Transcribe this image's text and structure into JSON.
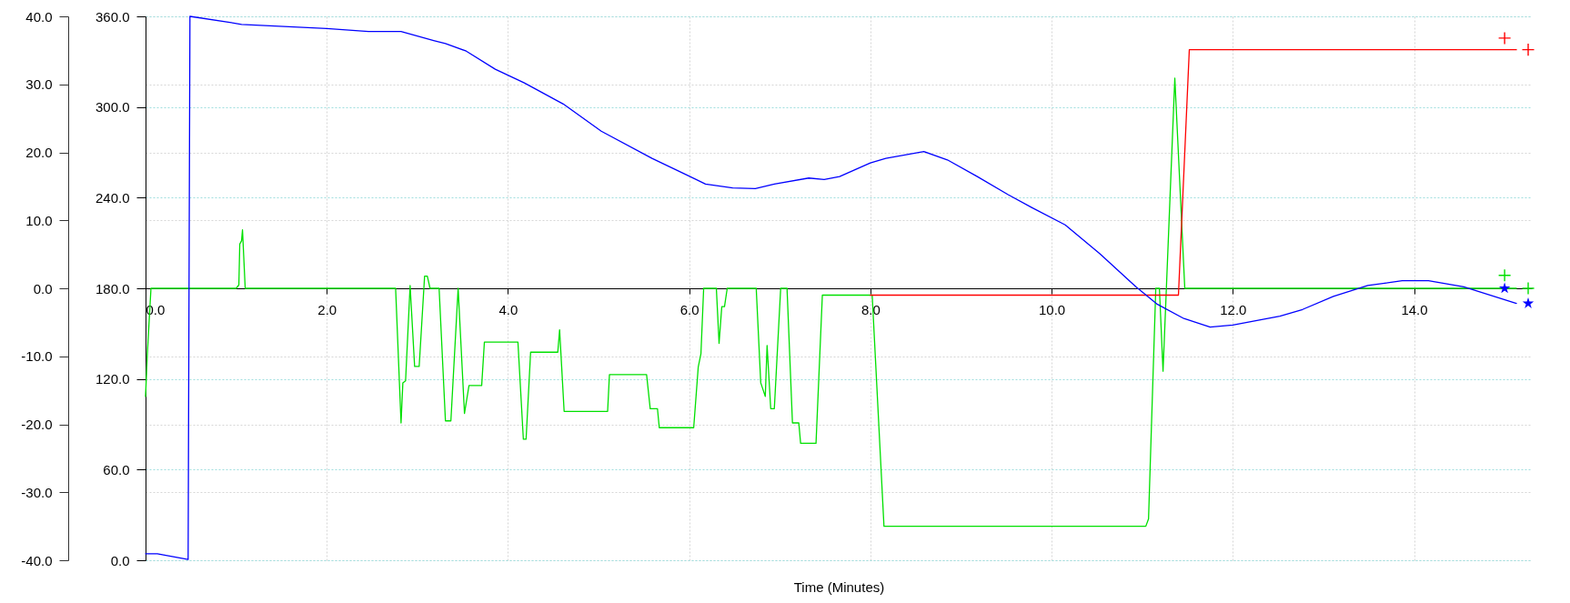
{
  "chart_data": {
    "type": "line",
    "xlabel": "Time (Minutes)",
    "grid": true,
    "xlim": [
      0,
      15.3
    ],
    "xticks": [
      {
        "value": 0,
        "label": "0.0"
      },
      {
        "value": 2,
        "label": "2.0"
      },
      {
        "value": 4,
        "label": "4.0"
      },
      {
        "value": 6,
        "label": "6.0"
      },
      {
        "value": 8,
        "label": "8.0"
      },
      {
        "value": 10,
        "label": "10.0"
      },
      {
        "value": 12,
        "label": "12.0"
      },
      {
        "value": 14,
        "label": "14.0"
      }
    ],
    "ylim": [
      -40,
      40
    ],
    "yticks": [
      {
        "value": -40,
        "label": "-40.0"
      },
      {
        "value": -30,
        "label": "-30.0"
      },
      {
        "value": -20,
        "label": "-20.0"
      },
      {
        "value": -10,
        "label": "-10.0"
      },
      {
        "value": 0,
        "label": "0.0"
      },
      {
        "value": 10,
        "label": "10.0"
      },
      {
        "value": 20,
        "label": "20.0"
      },
      {
        "value": 30,
        "label": "30.0"
      },
      {
        "value": 40,
        "label": "40.0"
      }
    ],
    "y2lim": [
      0,
      360
    ],
    "y2ticks": [
      {
        "value": 0,
        "label": "0.0"
      },
      {
        "value": 60,
        "label": "60.0"
      },
      {
        "value": 120,
        "label": "120.0"
      },
      {
        "value": 180,
        "label": "180.0"
      },
      {
        "value": 240,
        "label": "240.0"
      },
      {
        "value": 300,
        "label": "300.0"
      },
      {
        "value": 360,
        "label": "360.0"
      }
    ],
    "series": [
      {
        "type": "line",
        "color": "#00e000",
        "x": [
          0,
          0.02,
          0.06,
          1.0,
          1.03,
          1.04,
          1.06,
          1.07,
          1.1,
          2.76,
          2.82,
          2.84,
          2.87,
          2.92,
          2.97,
          3.02,
          3.08,
          3.11,
          3.14,
          3.24,
          3.31,
          3.37,
          3.45,
          3.52,
          3.57,
          3.71,
          3.74,
          4.11,
          4.17,
          4.2,
          4.25,
          4.55,
          4.57,
          4.62,
          5.1,
          5.12,
          5.53,
          5.57,
          5.65,
          5.67,
          6.05,
          6.1,
          6.13,
          6.16,
          6.3,
          6.33,
          6.36,
          6.39,
          6.42,
          6.74,
          6.79,
          6.84,
          6.86,
          6.9,
          6.94,
          7.01,
          7.08,
          7.14,
          7.21,
          7.23,
          7.4,
          7.47,
          8.02,
          8.15,
          11.04,
          11.07,
          11.15,
          11.19,
          11.23,
          11.36,
          11.47,
          15.13
        ],
        "values": [
          -15.9,
          -9.6,
          0,
          0,
          0.5,
          6.5,
          7,
          8.6,
          0,
          0,
          -19.8,
          -13.9,
          -13.6,
          0.4,
          -11.5,
          -11.5,
          1.8,
          1.8,
          0,
          0,
          -19.5,
          -19.5,
          0,
          -18.4,
          -14.3,
          -14.3,
          -7.9,
          -7.9,
          -22.2,
          -22.2,
          -9.4,
          -9.4,
          -6.1,
          -18.1,
          -18.1,
          -12.7,
          -12.7,
          -17.7,
          -17.7,
          -20.5,
          -20.5,
          -11.6,
          -9.6,
          0,
          0,
          -8.1,
          -2.7,
          -2.7,
          0,
          0,
          -13.9,
          -15.9,
          -8.4,
          -17.7,
          -17.7,
          0,
          0,
          -19.8,
          -19.8,
          -22.8,
          -22.8,
          -1,
          -1,
          -35,
          -35,
          -33.9,
          0,
          0,
          -12.2,
          30.9,
          0,
          0
        ]
      },
      {
        "type": "line",
        "color": "#ff0000",
        "x": [
          8.0,
          11.4,
          11.52,
          15.13
        ],
        "values": [
          -1,
          -1,
          35.1,
          35.1
        ]
      },
      {
        "type": "line",
        "color": "#0000ff",
        "axis": "y2",
        "x": [
          0,
          0.13,
          0.47,
          0.49,
          0.93,
          1.06,
          2.0,
          2.46,
          2.82,
          3.18,
          3.31,
          3.54,
          3.86,
          4.18,
          4.61,
          5.03,
          5.59,
          6.01,
          6.18,
          6.48,
          6.73,
          6.94,
          7.32,
          7.49,
          7.66,
          8.0,
          8.17,
          8.59,
          8.85,
          9.18,
          9.52,
          9.78,
          10.15,
          10.53,
          10.93,
          11.16,
          11.46,
          11.75,
          12.0,
          12.52,
          12.77,
          13.11,
          13.49,
          13.87,
          14.16,
          14.55,
          15.13
        ],
        "values": [
          4.3,
          4.3,
          0.5,
          360,
          356,
          354.7,
          352,
          350,
          350,
          344,
          342,
          337,
          325,
          316,
          302,
          284,
          266,
          254,
          249,
          246.5,
          246,
          249,
          253,
          252,
          254,
          263,
          266,
          270.5,
          265,
          254,
          242,
          233.5,
          222,
          203,
          181,
          169.7,
          160,
          154.4,
          155.7,
          161.5,
          166,
          174.7,
          181.9,
          185,
          185,
          181,
          170
        ]
      },
      {
        "type": "scatter",
        "color": "#ff0000",
        "marker": "cross",
        "x": [
          15.0,
          15.26
        ],
        "values": [
          36.8,
          35.1
        ]
      },
      {
        "type": "scatter",
        "color": "#00e000",
        "marker": "cross",
        "x": [
          15.0,
          15.26
        ],
        "values": [
          1.9,
          0
        ]
      },
      {
        "type": "scatter",
        "color": "#0000ff",
        "marker": "star",
        "axis": "y2",
        "x": [
          15.0,
          15.26
        ],
        "values": [
          180,
          170
        ]
      }
    ]
  }
}
